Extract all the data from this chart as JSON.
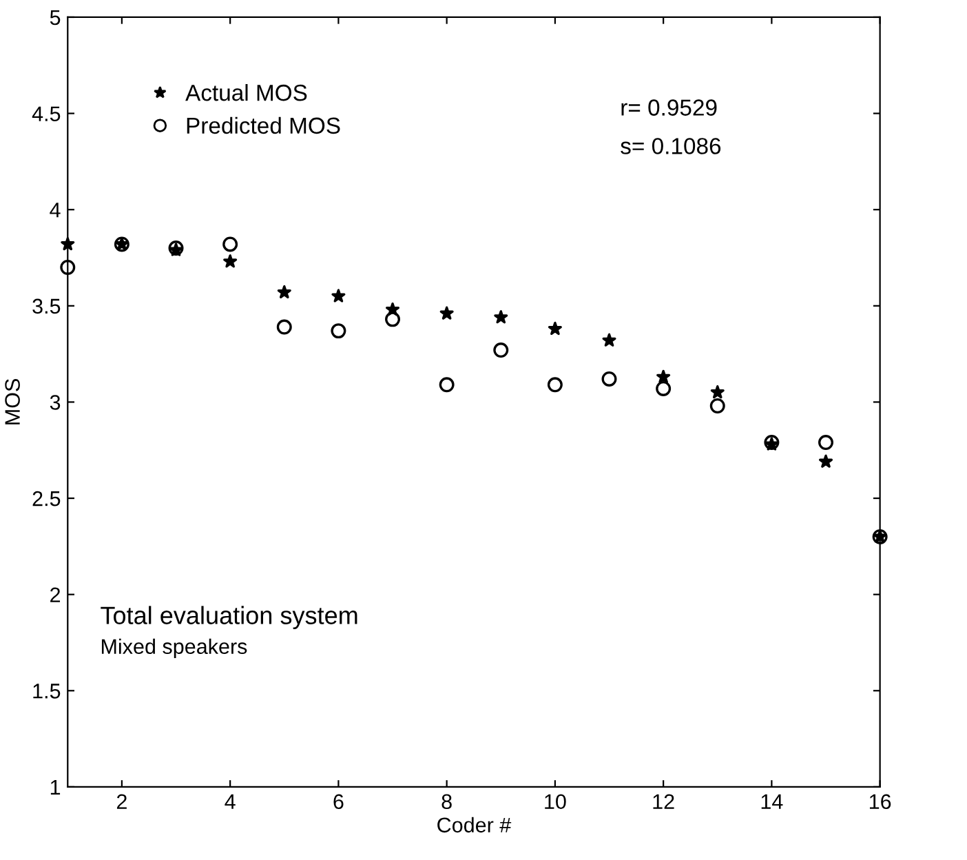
{
  "chart_data": {
    "type": "scatter",
    "xlabel": "Coder #",
    "ylabel": "MOS",
    "x": [
      1,
      2,
      3,
      4,
      5,
      6,
      7,
      8,
      9,
      10,
      11,
      12,
      13,
      14,
      15,
      16
    ],
    "series": [
      {
        "name": "Actual MOS",
        "color": "#000000",
        "marker": "star",
        "values": [
          3.82,
          3.82,
          3.79,
          3.73,
          3.57,
          3.55,
          3.48,
          3.46,
          3.44,
          3.38,
          3.32,
          3.13,
          3.05,
          2.78,
          2.69,
          2.3
        ]
      },
      {
        "name": "Predicted MOS",
        "color": "#000000",
        "marker": "circle",
        "values": [
          3.7,
          3.82,
          3.8,
          3.82,
          3.39,
          3.37,
          3.43,
          3.09,
          3.27,
          3.09,
          3.12,
          3.07,
          2.98,
          2.79,
          2.79,
          2.3
        ]
      }
    ],
    "xlim": [
      1,
      16
    ],
    "xticks": [
      2,
      4,
      6,
      8,
      10,
      12,
      14,
      16
    ],
    "ylim": [
      1,
      5
    ],
    "yticks": [
      1,
      1.5,
      2,
      2.5,
      3,
      3.5,
      4,
      4.5,
      5
    ],
    "legend": "top left",
    "annotations": [
      "r= 0.9529",
      "s= 0.1086",
      "Total evaluation system",
      "Mixed speakers"
    ]
  }
}
